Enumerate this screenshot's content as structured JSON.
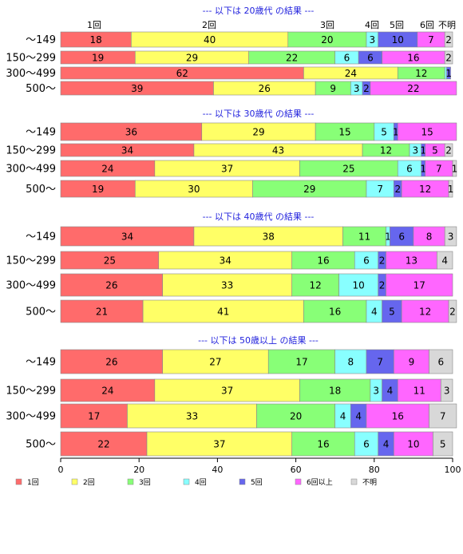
{
  "chart_data": {
    "type": "bar",
    "stacked": true,
    "orientation": "horizontal",
    "xlim": [
      0,
      100
    ],
    "x_ticks": [
      "0",
      "20",
      "40",
      "60",
      "80",
      "100"
    ],
    "grid": false,
    "legend_position": "bottom-left",
    "category_labels": [
      "1回",
      "2回",
      "3回",
      "4回",
      "5回",
      "6回以上",
      "不明"
    ],
    "top_labels": [
      "1回",
      "2回",
      "3回",
      "4回",
      "5回",
      "6回",
      "不明"
    ],
    "colors": [
      "#ff6b6b",
      "#ffff66",
      "#88ff77",
      "#88ffff",
      "#6666ee",
      "#ff66ff",
      "#d8d8d8"
    ],
    "groups": [
      {
        "title": "--- 以下は 20歳代 の結果 ---",
        "rows": [
          {
            "label": "～149",
            "values": [
              18,
              40,
              20,
              3,
              10,
              7,
              2
            ]
          },
          {
            "label": "150～299",
            "values": [
              19,
              29,
              22,
              6,
              6,
              16,
              2
            ]
          },
          {
            "label": "300～499",
            "values": [
              62,
              24,
              12,
              0.5,
              1,
              0,
              0
            ]
          },
          {
            "label": "500～",
            "values": [
              39,
              26,
              9,
              3,
              2,
              22,
              0
            ]
          }
        ]
      },
      {
        "title": "--- 以下は 30歳代 の結果 ---",
        "rows": [
          {
            "label": "～149",
            "values": [
              36,
              29,
              15,
              5,
              1,
              15,
              0
            ]
          },
          {
            "label": "150～299",
            "values": [
              34,
              43,
              12,
              3,
              1,
              5,
              2
            ]
          },
          {
            "label": "300～499",
            "values": [
              24,
              37,
              25,
              6,
              1,
              7,
              1
            ]
          },
          {
            "label": "500～",
            "values": [
              19,
              30,
              29,
              7,
              2,
              12,
              1
            ]
          }
        ]
      },
      {
        "title": "--- 以下は 40歳代 の結果 ---",
        "rows": [
          {
            "label": "～149",
            "values": [
              34,
              38,
              11,
              1,
              6,
              8,
              3
            ]
          },
          {
            "label": "150～299",
            "values": [
              25,
              34,
              16,
              6,
              2,
              13,
              4
            ]
          },
          {
            "label": "300～499",
            "values": [
              26,
              33,
              12,
              10,
              2,
              17,
              0
            ]
          },
          {
            "label": "500～",
            "values": [
              21,
              41,
              16,
              4,
              5,
              12,
              2
            ]
          }
        ]
      },
      {
        "title": "--- 以下は 50歳以上 の結果 ---",
        "rows": [
          {
            "label": "～149",
            "values": [
              26,
              27,
              17,
              8,
              7,
              9,
              6
            ]
          },
          {
            "label": "150～299",
            "values": [
              24,
              37,
              18,
              3,
              4,
              11,
              3
            ]
          },
          {
            "label": "300～499",
            "values": [
              17,
              33,
              20,
              4,
              4,
              16,
              7
            ]
          },
          {
            "label": "500～",
            "values": [
              22,
              37,
              16,
              6,
              4,
              10,
              5
            ]
          }
        ]
      }
    ]
  }
}
